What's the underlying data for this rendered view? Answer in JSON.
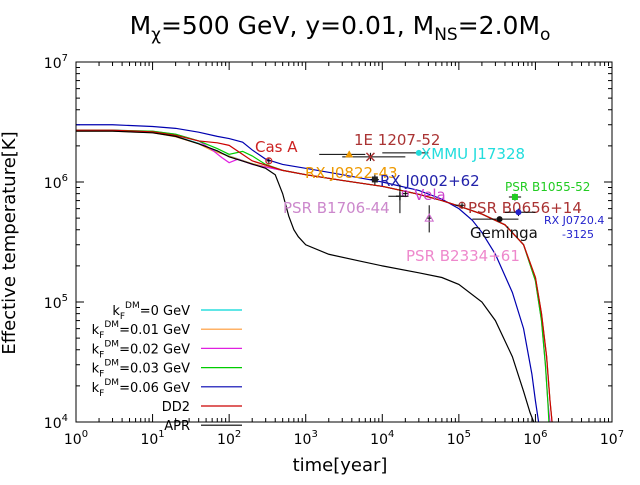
{
  "chart_data": {
    "type": "line",
    "title": {
      "parts": [
        {
          "text": "M",
          "style": "normal"
        },
        {
          "text": "χ",
          "style": "sub"
        },
        {
          "text": "=500 GeV, y=0.01, M",
          "style": "normal"
        },
        {
          "text": "NS",
          "style": "sub"
        },
        {
          "text": "=2.0M",
          "style": "normal"
        },
        {
          "text": "o",
          "style": "sub"
        }
      ]
    },
    "xlabel": "time[year]",
    "ylabel": "Effective temperature[K]",
    "xscale": "log",
    "yscale": "log",
    "xlim": [
      1,
      10000000
    ],
    "ylim": [
      10000,
      10000000
    ],
    "x_ticks": [
      {
        "value": 1,
        "base": "10",
        "exp": "0"
      },
      {
        "value": 10,
        "base": "10",
        "exp": "1"
      },
      {
        "value": 100,
        "base": "10",
        "exp": "2"
      },
      {
        "value": 1000,
        "base": "10",
        "exp": "3"
      },
      {
        "value": 10000,
        "base": "10",
        "exp": "4"
      },
      {
        "value": 100000,
        "base": "10",
        "exp": "5"
      },
      {
        "value": 1000000,
        "base": "10",
        "exp": "6"
      },
      {
        "value": 10000000,
        "base": "10",
        "exp": "7"
      }
    ],
    "y_ticks": [
      {
        "value": 10000,
        "base": "10",
        "exp": "4"
      },
      {
        "value": 100000,
        "base": "10",
        "exp": "5"
      },
      {
        "value": 1000000,
        "base": "10",
        "exp": "6"
      },
      {
        "value": 10000000,
        "base": "10",
        "exp": "7"
      }
    ],
    "legend_position": "bottom-left",
    "series": [
      {
        "id": "kf0",
        "legend": {
          "prefix": "k",
          "sub": "F",
          "sup": "DM",
          "suffix": "=0 GeV"
        },
        "color": "#00d8d8",
        "x": [
          1,
          3,
          10,
          20,
          40,
          60,
          100,
          200,
          500,
          1000,
          3000,
          10000,
          30000,
          60000,
          100000,
          200000,
          400000,
          700000,
          1000000,
          1200000,
          1400000,
          1550000,
          1650000
        ],
        "y": [
          2700000,
          2700000,
          2600000,
          2400000,
          2100000,
          1850000,
          1650000,
          1420000,
          1250000,
          1150000,
          1030000,
          920000,
          790000,
          700000,
          630000,
          540000,
          440000,
          300000,
          160000,
          80000,
          35000,
          15000,
          10000
        ]
      },
      {
        "id": "kf001",
        "legend": {
          "prefix": "k",
          "sub": "F",
          "sup": "DM",
          "suffix": "=0.01 GeV"
        },
        "color": "#ff9933",
        "x": [
          1,
          3,
          10,
          20,
          40,
          60,
          100,
          200,
          500,
          1000,
          3000,
          10000,
          30000,
          60000,
          100000,
          200000,
          400000,
          700000,
          1000000,
          1200000,
          1400000,
          1550000,
          1650000
        ],
        "y": [
          2650000,
          2650000,
          2580000,
          2380000,
          2080000,
          1830000,
          1640000,
          1420000,
          1250000,
          1150000,
          1030000,
          920000,
          790000,
          700000,
          630000,
          540000,
          440000,
          300000,
          160000,
          80000,
          35000,
          15000,
          10000
        ]
      },
      {
        "id": "kf002",
        "legend": {
          "prefix": "k",
          "sub": "F",
          "sup": "DM",
          "suffix": "=0.02 GeV"
        },
        "color": "#e020e0",
        "x": [
          1,
          3,
          10,
          20,
          40,
          60,
          80,
          100,
          130,
          200,
          500,
          1000,
          3000,
          10000,
          30000,
          60000,
          100000,
          200000,
          400000,
          700000,
          1000000,
          1200000,
          1350000,
          1450000,
          1550000
        ],
        "y": [
          2700000,
          2700000,
          2650000,
          2500000,
          2200000,
          1850000,
          1600000,
          1450000,
          1550000,
          1400000,
          1250000,
          1150000,
          1030000,
          920000,
          790000,
          700000,
          630000,
          540000,
          440000,
          300000,
          150000,
          70000,
          30000,
          15000,
          10000
        ]
      },
      {
        "id": "kf003",
        "legend": {
          "prefix": "k",
          "sub": "F",
          "sup": "DM",
          "suffix": "=0.03 GeV"
        },
        "color": "#00cc00",
        "x": [
          1,
          3,
          10,
          20,
          40,
          70,
          100,
          150,
          200,
          300,
          500,
          1000,
          3000,
          10000,
          30000,
          60000,
          100000,
          200000,
          400000,
          700000,
          1000000,
          1200000,
          1350000,
          1450000,
          1500000
        ],
        "y": [
          2700000,
          2700000,
          2650000,
          2500000,
          2200000,
          1900000,
          1700000,
          1800000,
          1650000,
          1400000,
          1250000,
          1150000,
          1030000,
          920000,
          790000,
          700000,
          630000,
          540000,
          440000,
          300000,
          150000,
          70000,
          30000,
          15000,
          10000
        ]
      },
      {
        "id": "kf006",
        "legend": {
          "prefix": "k",
          "sub": "F",
          "sup": "DM",
          "suffix": "=0.06 GeV"
        },
        "color": "#0000b0",
        "x": [
          1,
          3,
          10,
          20,
          40,
          70,
          100,
          150,
          200,
          300,
          500,
          1000,
          3000,
          10000,
          30000,
          60000,
          100000,
          150000,
          200000,
          300000,
          500000,
          700000,
          900000,
          1000000,
          1100000
        ],
        "y": [
          3000000,
          3000000,
          2900000,
          2800000,
          2600000,
          2400000,
          2300000,
          2150000,
          1850000,
          1550000,
          1400000,
          1300000,
          1150000,
          1000000,
          850000,
          720000,
          600000,
          480000,
          380000,
          250000,
          120000,
          60000,
          25000,
          15000,
          10000
        ]
      },
      {
        "id": "dd2",
        "legend": {
          "prefix": "DD2",
          "sub": "",
          "sup": "",
          "suffix": ""
        },
        "color": "#cc0000",
        "x": [
          1,
          3,
          10,
          20,
          40,
          70,
          100,
          200,
          500,
          1000,
          3000,
          10000,
          30000,
          60000,
          100000,
          200000,
          400000,
          700000,
          1000000,
          1200000,
          1400000,
          1550000,
          1650000
        ],
        "y": [
          2700000,
          2700000,
          2620000,
          2450000,
          2200000,
          2120000,
          2020000,
          1500000,
          1250000,
          1150000,
          1030000,
          920000,
          790000,
          700000,
          630000,
          540000,
          440000,
          300000,
          160000,
          80000,
          35000,
          15000,
          10000
        ]
      },
      {
        "id": "apr",
        "legend": {
          "prefix": "APR",
          "sub": "",
          "sup": "",
          "suffix": ""
        },
        "color": "#000000",
        "x": [
          1,
          3,
          10,
          20,
          40,
          70,
          100,
          200,
          300,
          400,
          500,
          600,
          700,
          800,
          1000,
          2000,
          5000,
          10000,
          30000,
          60000,
          100000,
          200000,
          300000,
          500000,
          700000,
          850000,
          950000
        ],
        "y": [
          2650000,
          2650000,
          2570000,
          2400000,
          2080000,
          1820000,
          1620000,
          1410000,
          1300000,
          1150000,
          800000,
          520000,
          400000,
          350000,
          300000,
          250000,
          220000,
          200000,
          175000,
          160000,
          140000,
          100000,
          70000,
          35000,
          18000,
          12000,
          10000
        ]
      }
    ],
    "observations": [
      {
        "label": "Cas A",
        "label_color": "#cc2222",
        "marker_color": "#cc2222",
        "marker": "open-circle",
        "x": 330,
        "y": 1500000,
        "xerr": [
          310,
          350
        ],
        "yerr": [
          1400000,
          1600000
        ]
      },
      {
        "label": "1E 1207-52",
        "label_color": "#aa3333",
        "marker_color": "#aa3333",
        "marker": "cross",
        "x": 7000,
        "y": 1620000,
        "xerr": [
          3000,
          20000
        ],
        "yerr": [
          1500000,
          1750000
        ]
      },
      {
        "label": "XMMU J17328",
        "label_color": "#22dddd",
        "marker_color": "#22dddd",
        "marker": "filled-circle",
        "x": 30000,
        "y": 1750000,
        "xerr": [
          10000,
          40000
        ],
        "yerr": [
          1700000,
          1800000
        ]
      },
      {
        "label": "RX J0822-43",
        "label_color": "#ee9900",
        "marker_color": "#ee9900",
        "marker": "filled-triangle",
        "x": 3700,
        "y": 1700000,
        "xerr": [
          1500,
          6000
        ],
        "yerr": [
          1600000,
          1800000
        ]
      },
      {
        "label": "RX J0002+62",
        "label_color": "#2222aa",
        "marker_color": "#222222",
        "marker": "filled-square",
        "x": 8000,
        "y": 1050000,
        "xerr": [
          7000,
          9000
        ],
        "yerr": [
          950000,
          1150000
        ]
      },
      {
        "label": "Vela",
        "label_color": "#cc44cc",
        "marker_color": "#cc44cc",
        "marker": "open-circle",
        "x": 20000,
        "y": 800000,
        "xerr": [
          18000,
          22000
        ],
        "yerr": [
          750000,
          850000
        ]
      },
      {
        "label": "PSR B1706-44",
        "label_color": "#cc88cc",
        "marker_color": "#222222",
        "marker": "plus",
        "x": 17000,
        "y": 760000,
        "xerr": [
          12000,
          22000
        ],
        "yerr": [
          550000,
          950000
        ]
      },
      {
        "label": "PSR B1055-52",
        "label_color": "#22cc22",
        "marker_color": "#22cc22",
        "marker": "filled-square",
        "x": 540000,
        "y": 750000,
        "xerr": [
          450000,
          650000
        ],
        "yerr": [
          700000,
          800000
        ]
      },
      {
        "label": "PSR B0656+14",
        "label_color": "#aa3333",
        "marker_color": "#aa3333",
        "marker": "open-circle",
        "x": 110000,
        "y": 640000,
        "xerr": [
          90000,
          120000
        ],
        "yerr": [
          600000,
          680000
        ]
      },
      {
        "label": "RX J0720.4-3125",
        "label_color": "#2222cc",
        "marker_color": "#2222cc",
        "marker": "filled-circle",
        "x": 600000,
        "y": 560000,
        "xerr": [
          400000,
          1000000
        ],
        "yerr": [
          520000,
          600000
        ]
      },
      {
        "label": "Geminga",
        "label_color": "#111111",
        "marker_color": "#111111",
        "marker": "filled-circle",
        "x": 340000,
        "y": 490000,
        "xerr": [
          150000,
          600000
        ],
        "yerr": [
          470000,
          510000
        ]
      },
      {
        "label": "PSR B2334+61",
        "label_color": "#ee88cc",
        "marker_color": "#cc66cc",
        "marker": "open-triangle",
        "x": 41000,
        "y": 500000,
        "xerr": [
          38000,
          44000
        ],
        "yerr": [
          380000,
          640000
        ]
      }
    ]
  }
}
